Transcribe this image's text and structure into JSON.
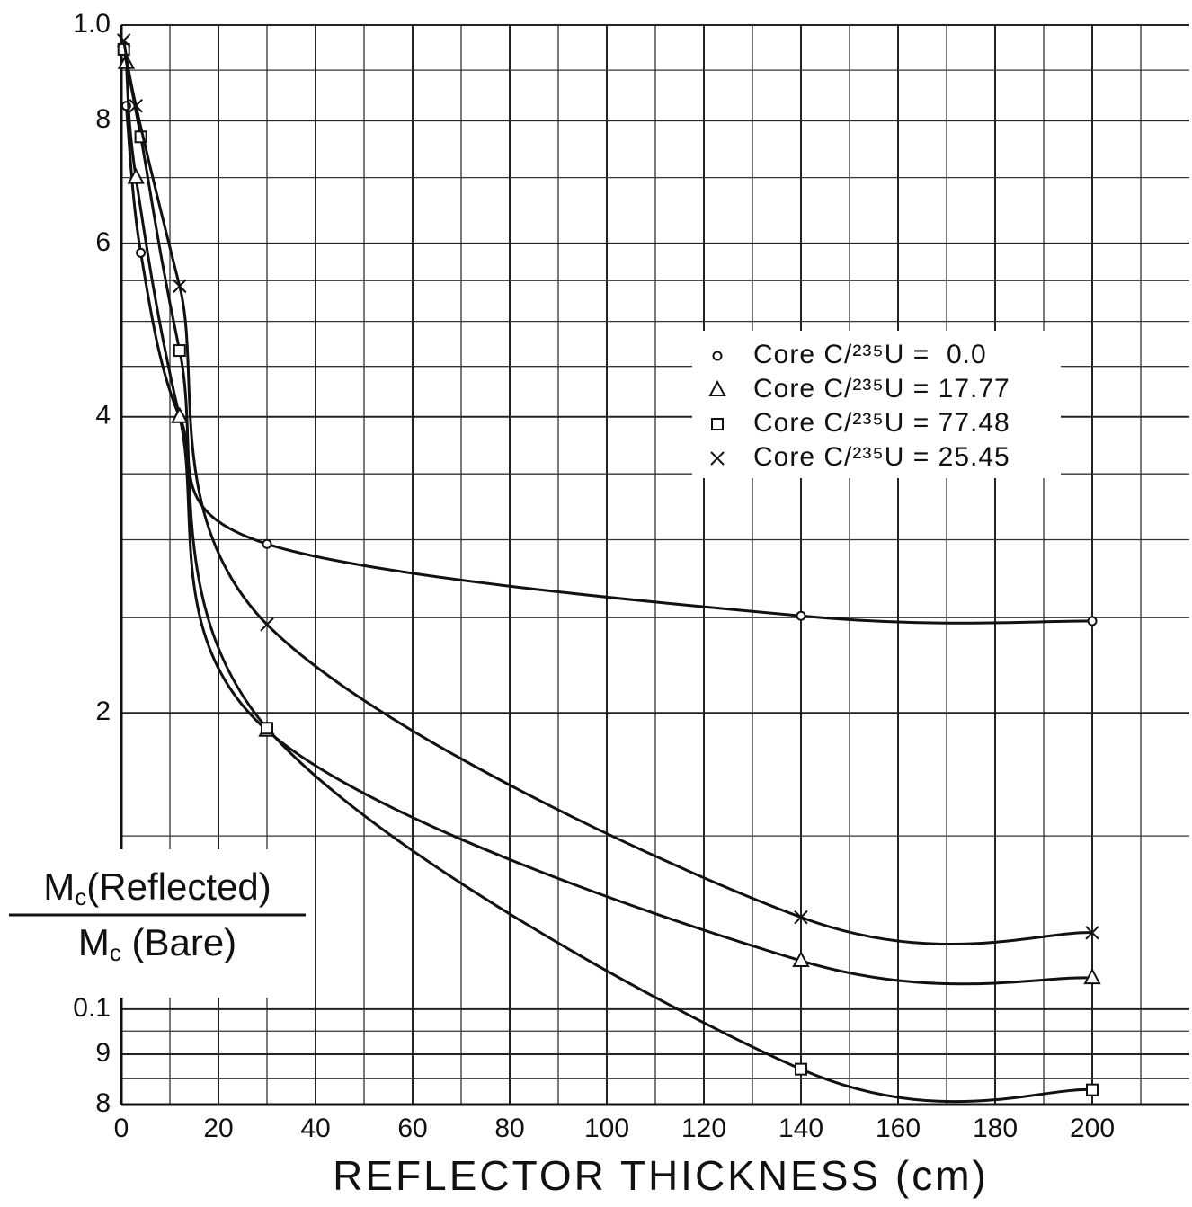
{
  "chart_data": {
    "type": "line",
    "x_label": "REFLECTOR THICKNESS (cm)",
    "y_label": {
      "numerator": {
        "symbol": "M",
        "subscript": "c",
        "text": "(Reflected)"
      },
      "denominator": {
        "symbol": "M",
        "subscript": "c",
        "text": " (Bare)"
      }
    },
    "xlim": [
      0,
      220
    ],
    "xticks": [
      0,
      20,
      40,
      60,
      80,
      100,
      120,
      140,
      160,
      180,
      200
    ],
    "x_minor_ticks": [
      10,
      30,
      50,
      70,
      90,
      110,
      130,
      150,
      170,
      190,
      210
    ],
    "ylim": [
      0.08,
      1.0
    ],
    "log_y": true,
    "yticks": [
      {
        "value": 1.0,
        "label": "1.0"
      },
      {
        "value": 0.8,
        "label": "8"
      },
      {
        "value": 0.6,
        "label": "6"
      },
      {
        "value": 0.4,
        "label": "4"
      },
      {
        "value": 0.2,
        "label": "2"
      },
      0.1,
      {
        "value": 0.09,
        "label": "9"
      },
      {
        "value": 0.08,
        "label": "8"
      }
    ],
    "y_minor_ticks": [
      0.9,
      0.7,
      0.55,
      0.5,
      0.45,
      0.35,
      0.3,
      0.25,
      0.15,
      0.095,
      0.085
    ],
    "grid": true,
    "legend": "upper right",
    "series": [
      {
        "name": "Core C/²³⁵U =  0.0",
        "marker": "circle",
        "color": "#111111",
        "x": [
          1,
          4,
          12,
          30,
          140,
          200
        ],
        "values": [
          0.828,
          0.587,
          0.4,
          0.297,
          0.251,
          0.248
        ]
      },
      {
        "name": "Core C/²³⁵U = 17.77",
        "marker": "triangle",
        "color": "#111111",
        "x": [
          1,
          3,
          12,
          30,
          140,
          200
        ],
        "values": [
          0.916,
          0.7,
          0.4,
          0.192,
          0.112,
          0.1076
        ]
      },
      {
        "name": "Core C/²³⁵U = 77.48",
        "marker": "square",
        "color": "#111111",
        "x": [
          0.5,
          4,
          12,
          30,
          140,
          200
        ],
        "values": [
          0.945,
          0.77,
          0.467,
          0.193,
          0.0869,
          0.0828
        ]
      },
      {
        "name": "Core C/²³⁵U = 25.45",
        "marker": "cross",
        "color": "#111111",
        "x": [
          0.5,
          3,
          12,
          30,
          140,
          200
        ],
        "values": [
          0.965,
          0.828,
          0.543,
          0.246,
          0.124,
          0.1196
        ]
      }
    ]
  }
}
